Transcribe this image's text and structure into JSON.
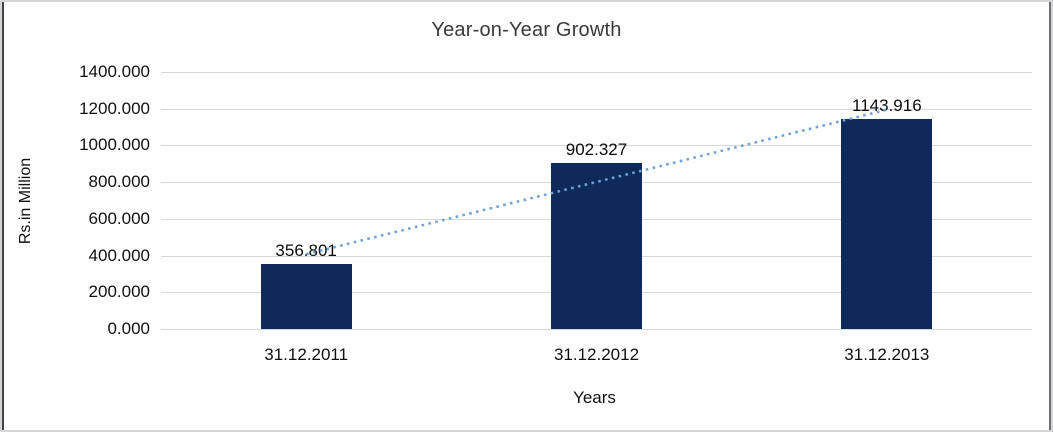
{
  "chart_data": {
    "type": "bar",
    "title": "Year-on-Year Growth",
    "xlabel": "Years",
    "ylabel": "Rs.in Million",
    "categories": [
      "31.12.2011",
      "31.12.2012",
      "31.12.2013"
    ],
    "values": [
      356.801,
      902.327,
      1143.916
    ],
    "value_labels": [
      "356.801",
      "902.327",
      "1143.916"
    ],
    "ylim": [
      0,
      1400
    ],
    "ytick_step": 200,
    "ytick_labels": [
      "0.000",
      "200.000",
      "400.000",
      "600.000",
      "800.000",
      "1000.000",
      "1200.000",
      "1400.000"
    ],
    "grid": "horizontal",
    "legend": "none",
    "bar_color": "#0e2a5a",
    "gridline_color": "#d9d9d9",
    "trendline": {
      "type": "linear",
      "style": "dotted",
      "color": "#6fa0d8",
      "start_value": 407.5,
      "end_value": 1194.6
    }
  }
}
